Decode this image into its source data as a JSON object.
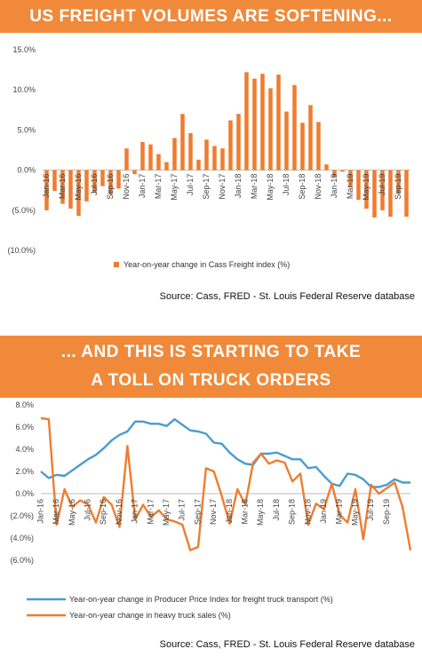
{
  "header1": {
    "title": "US FREIGHT VOLUMES ARE SOFTENING..."
  },
  "header2": {
    "line1": "... AND THIS IS STARTING TO TAKE",
    "line2": "A TOLL ON TRUCK ORDERS"
  },
  "source1": "Source: Cass, FRED - St. Louis Federal Reserve database",
  "source2": "Source: Cass, FRED - St. Louis Federal Reserve database",
  "chart_data": [
    {
      "type": "bar",
      "ylim": [
        -10,
        15
      ],
      "yticks": [
        "15.0%",
        "10.0%",
        "5.0%",
        "0.0%",
        "(5.0%)",
        "(10.0%)"
      ],
      "ytick_values": [
        15,
        10,
        5,
        0,
        -5,
        -10
      ],
      "categories": [
        "Jan-16",
        "Feb-16",
        "Mar-16",
        "Apr-16",
        "May-16",
        "Jun-16",
        "Jul-16",
        "Aug-16",
        "Sep-16",
        "Oct-16",
        "Nov-16",
        "Dec-16",
        "Jan-17",
        "Feb-17",
        "Mar-17",
        "Apr-17",
        "May-17",
        "Jun-17",
        "Jul-17",
        "Aug-17",
        "Sep-17",
        "Oct-17",
        "Nov-17",
        "Dec-17",
        "Jan-18",
        "Feb-18",
        "Mar-18",
        "Apr-18",
        "May-18",
        "Jun-18",
        "Jul-18",
        "Aug-18",
        "Sep-18",
        "Oct-18",
        "Nov-18",
        "Dec-18",
        "Jan-19",
        "Feb-19",
        "Mar-19",
        "Apr-19",
        "May-19",
        "Jun-19",
        "Jul-19",
        "Aug-19",
        "Sep-19",
        "Oct-19"
      ],
      "xtick_labels": [
        "Jan-16",
        "Mar-16",
        "May-16",
        "Jul-16",
        "Sep-16",
        "Nov-16",
        "Jan-17",
        "Mar-17",
        "May-17",
        "Jul-17",
        "Sep-17",
        "Nov-17",
        "Jan-18",
        "Mar-18",
        "May-18",
        "Jul-18",
        "Sep-18",
        "Nov-18",
        "Jan-19",
        "Mar-19",
        "May-19",
        "Jul-19",
        "Sep-19"
      ],
      "color": "#ed7d31",
      "series": [
        {
          "name": "Year-on-year change in Cass Freight index (%)",
          "values": [
            -5.0,
            -2.6,
            -4.2,
            -4.8,
            -5.7,
            -3.9,
            -2.8,
            -2.0,
            -3.0,
            -2.3,
            2.7,
            -0.5,
            3.5,
            3.2,
            2.0,
            1.0,
            4.0,
            7.0,
            4.6,
            1.3,
            3.8,
            3.0,
            2.7,
            6.2,
            7.0,
            12.2,
            11.4,
            12.0,
            10.2,
            11.9,
            7.3,
            10.6,
            5.9,
            8.1,
            6.0,
            0.7,
            -0.9,
            -0.2,
            -2.1,
            -3.7,
            -4.8,
            -5.9,
            -5.0,
            -5.8,
            -2.9,
            -5.8
          ]
        }
      ]
    },
    {
      "type": "line",
      "ylim": [
        -6,
        8
      ],
      "yticks": [
        "8.0%",
        "6.0%",
        "4.0%",
        "2.0%",
        "0.0%",
        "(2.0%)",
        "(4.0%)",
        "(6.0%)"
      ],
      "ytick_values": [
        8,
        6,
        4,
        2,
        0,
        -2,
        -4,
        -6
      ],
      "xtick_labels": [
        "Jan-16",
        "Mar-16",
        "May-16",
        "Jul-16",
        "Sep-16",
        "Nov-16",
        "Jan-17",
        "Mar-17",
        "May-17",
        "Jul-17",
        "Sep-17",
        "Nov-17",
        "Jan-18",
        "Mar-18",
        "May-18",
        "Jul-18",
        "Sep-18",
        "Nov-18",
        "Jan-19",
        "Mar-19",
        "May-19",
        "Jul-19",
        "Sep-19"
      ],
      "series": [
        {
          "name": "Year-on-year change in Producer Price Index for freight truck transport (%)",
          "color": "#4a9ccf",
          "values": [
            2.0,
            1.4,
            1.7,
            1.6,
            2.1,
            2.6,
            3.1,
            3.5,
            4.1,
            4.8,
            5.3,
            5.6,
            6.5,
            6.5,
            6.3,
            6.3,
            6.1,
            6.7,
            6.2,
            5.7,
            5.6,
            5.4,
            4.6,
            4.5,
            3.7,
            3.1,
            2.7,
            2.6,
            3.6,
            3.6,
            3.7,
            3.4,
            3.1,
            3.1,
            2.3,
            2.4,
            1.6,
            0.9,
            0.7,
            1.8,
            1.7,
            1.3,
            0.6,
            0.6,
            0.8,
            1.3,
            1.0,
            1.0
          ]
        },
        {
          "name": "Year-on-year change in heavy truck sales (%)",
          "color": "#ed7d31",
          "values": [
            6.8,
            6.7,
            -2.8,
            0.4,
            -1.2,
            -0.6,
            -1.0,
            -2.6,
            -0.3,
            -1.0,
            -3.0,
            4.3,
            -2.3,
            -1.0,
            -2.1,
            -1.5,
            -2.3,
            -2.5,
            -2.8,
            -5.1,
            -4.8,
            2.3,
            2.0,
            -0.2,
            -2.7,
            0.4,
            -1.0,
            2.8,
            3.6,
            2.7,
            3.0,
            2.8,
            1.1,
            1.8,
            -2.8,
            -0.9,
            -1.4,
            0.9,
            -1.9,
            -2.6,
            0.4,
            -4.1,
            0.8,
            0.0,
            0.5,
            1.0,
            -1.2,
            -5.1
          ]
        }
      ]
    }
  ]
}
